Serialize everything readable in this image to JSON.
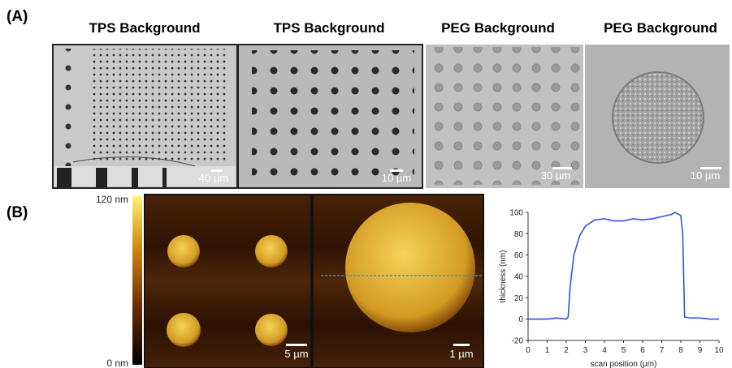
{
  "panel_a": {
    "label": "(A)",
    "images": [
      {
        "title": "TPS Background",
        "scale": "40 µm"
      },
      {
        "title": "TPS Background",
        "scale": "10 µm"
      },
      {
        "title": "PEG Background",
        "scale": "30 µm"
      },
      {
        "title": "PEG Background",
        "scale": "10 µm"
      }
    ]
  },
  "panel_b": {
    "label": "(B)",
    "colorbar": {
      "max": "120 nm",
      "min": "0 nm"
    },
    "images": [
      {
        "scale": "5 µm"
      },
      {
        "scale": "1 µm"
      }
    ]
  },
  "chart_data": {
    "type": "line",
    "x_label": "scan position (µm)",
    "y_label": "thickness (nm)",
    "x": [
      0,
      0.5,
      1,
      1.5,
      2,
      2.1,
      2.2,
      2.4,
      2.7,
      3,
      3.5,
      4,
      4.5,
      5,
      5.5,
      6,
      6.5,
      7,
      7.5,
      7.7,
      8,
      8.1,
      8.2,
      8.5,
      9,
      9.5,
      10
    ],
    "series": [
      {
        "color": "#2b54e0",
        "values": [
          0,
          0,
          0,
          1,
          0,
          2,
          30,
          60,
          78,
          87,
          93,
          94,
          92,
          92,
          94,
          93,
          94,
          96,
          98,
          100,
          97,
          80,
          2,
          1,
          1,
          0,
          0
        ]
      }
    ],
    "xlim": [
      0,
      10
    ],
    "ylim": [
      -20,
      100
    ],
    "xticks": [
      0,
      1,
      2,
      3,
      4,
      5,
      6,
      7,
      8,
      9,
      10
    ],
    "yticks": [
      -20,
      0,
      20,
      40,
      60,
      80,
      100
    ]
  }
}
